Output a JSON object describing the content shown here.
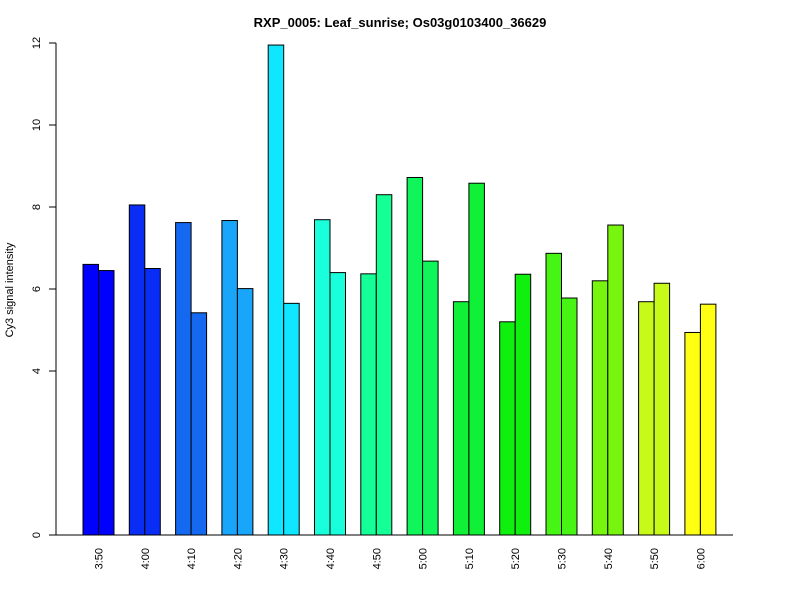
{
  "chart_data": {
    "type": "bar",
    "title": "RXP_0005: Leaf_sunrise; Os03g0103400_36629",
    "xlabel": "",
    "ylabel": "Cy3 signal intensity",
    "ylim": [
      0,
      12
    ],
    "yticks": [
      0,
      4,
      6,
      8,
      10,
      12
    ],
    "categories": [
      "3:50",
      "4:00",
      "4:10",
      "4:20",
      "4:30",
      "4:40",
      "4:50",
      "5:00",
      "5:10",
      "5:20",
      "5:30",
      "5:40",
      "5:50",
      "6:00"
    ],
    "colors": [
      "#0000FF",
      "#0A2DF5",
      "#1469F0",
      "#19A5FA",
      "#0FE6FF",
      "#19FFDC",
      "#14FF96",
      "#0FF55A",
      "#0FF037",
      "#0FF00F",
      "#46F514",
      "#78F50F",
      "#C8FA19",
      "#FFFF14"
    ],
    "series": [
      {
        "values": [
          6.6,
          8.05,
          7.62,
          7.67,
          11.95,
          7.69,
          6.37,
          8.72,
          5.69,
          5.2,
          6.87,
          6.2,
          5.69,
          4.94
        ]
      },
      {
        "values": [
          6.45,
          6.5,
          5.42,
          6.01,
          5.65,
          6.4,
          8.3,
          6.68,
          8.58,
          6.36,
          5.78,
          7.56,
          6.14,
          5.63
        ]
      }
    ],
    "grid": false,
    "legend": "none"
  }
}
